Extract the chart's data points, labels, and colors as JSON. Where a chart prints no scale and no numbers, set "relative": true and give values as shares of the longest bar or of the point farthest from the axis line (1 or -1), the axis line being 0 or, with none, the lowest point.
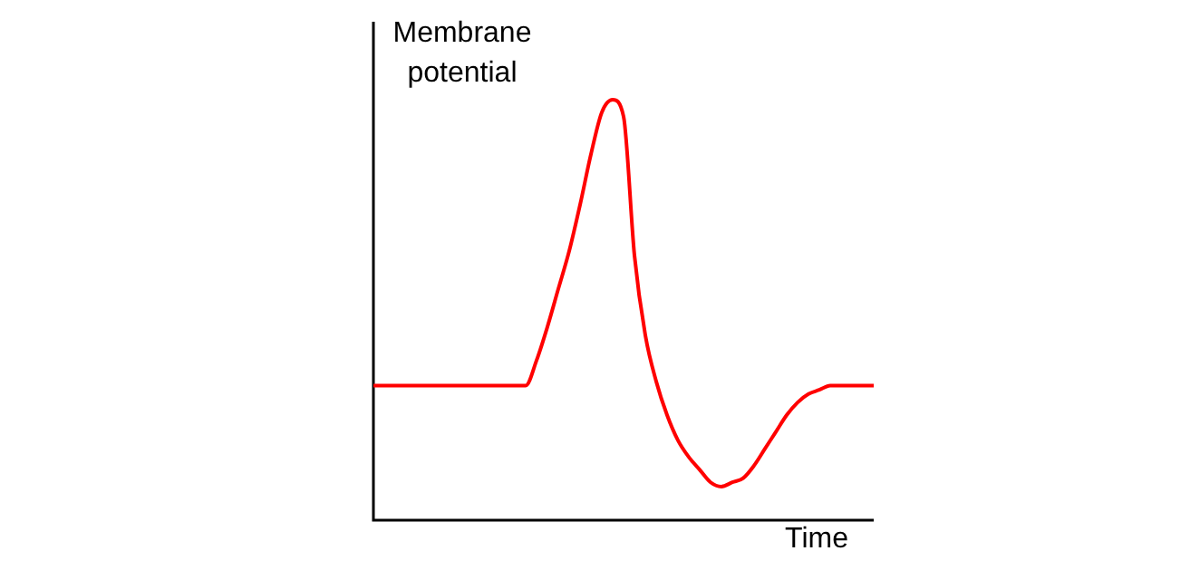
{
  "chart_data": {
    "type": "line",
    "relative": true,
    "ylabel": "Membrane potential",
    "xlabel": "Time",
    "color": "#ff0000",
    "marker": "none",
    "legend": false,
    "categories": [
      null,
      null,
      null,
      null,
      null,
      null,
      null,
      null,
      null,
      null,
      null,
      null,
      null,
      null,
      null,
      null,
      null,
      null,
      null,
      null,
      null,
      null,
      null,
      null,
      null,
      null,
      null,
      null,
      null,
      null,
      null,
      null,
      null,
      null,
      null,
      null,
      null,
      null,
      null,
      null,
      null,
      null,
      null,
      null,
      null,
      null,
      null
    ],
    "values": [
      0.32,
      0.32,
      0.32,
      0.32,
      0.32,
      0.32,
      0.32,
      0.32,
      0.32,
      0.32,
      0.32,
      0.32,
      0.32,
      0.32,
      0.32,
      0.38,
      0.46,
      0.55,
      0.64,
      0.75,
      0.87,
      0.97,
      1,
      0.96,
      0.63,
      0.44,
      0.33,
      0.25,
      0.19,
      0.15,
      0.12,
      0.09,
      0.08,
      0.09,
      0.1,
      0.13,
      0.17,
      0.21,
      0.25,
      0.28,
      0.3,
      0.31,
      0.32,
      0.32,
      0.32,
      0.32,
      0.32
    ]
  }
}
